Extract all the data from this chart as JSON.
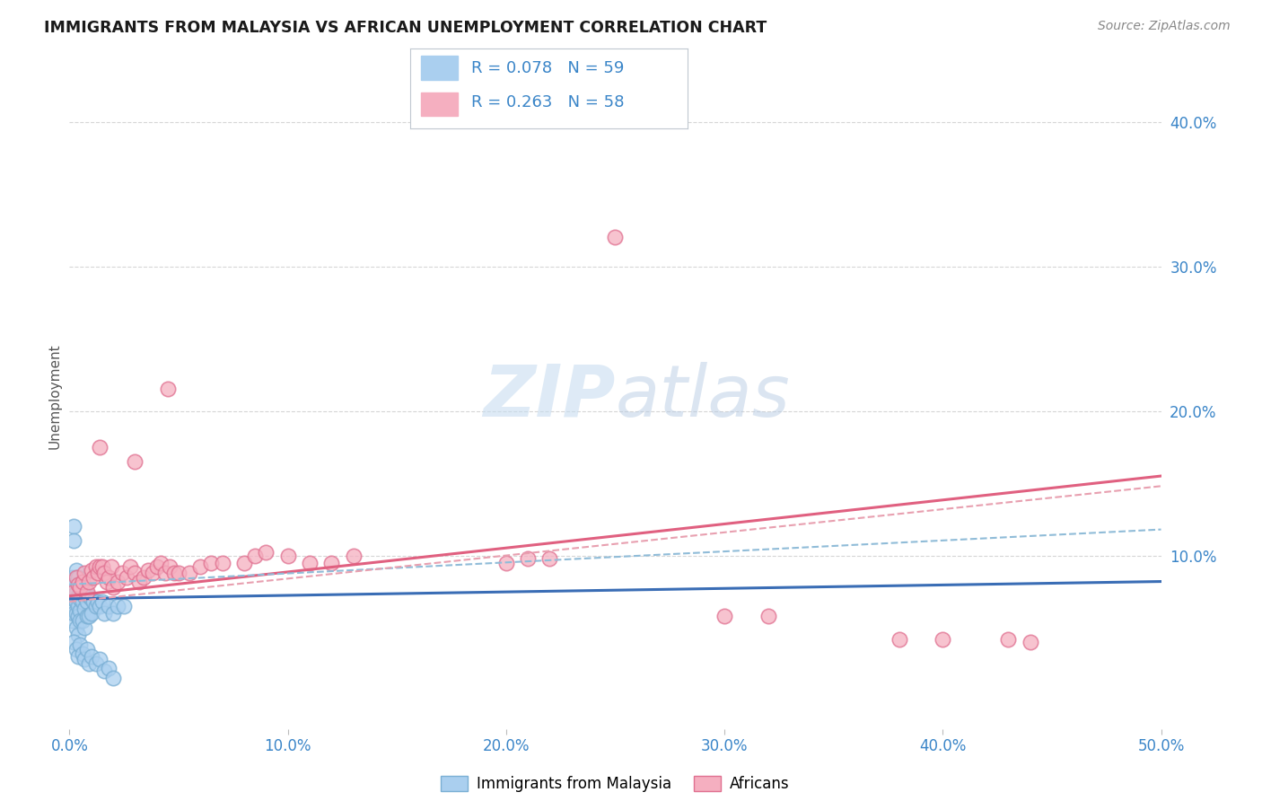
{
  "title": "IMMIGRANTS FROM MALAYSIA VS AFRICAN UNEMPLOYMENT CORRELATION CHART",
  "source": "Source: ZipAtlas.com",
  "ylabel": "Unemployment",
  "xlim": [
    0.0,
    0.5
  ],
  "ylim": [
    -0.02,
    0.44
  ],
  "xticks": [
    0.0,
    0.1,
    0.2,
    0.3,
    0.4,
    0.5
  ],
  "xtick_labels": [
    "0.0%",
    "10.0%",
    "20.0%",
    "30.0%",
    "40.0%",
    "50.0%"
  ],
  "ytick_vals": [
    0.1,
    0.2,
    0.3,
    0.4
  ],
  "ytick_labels": [
    "10.0%",
    "20.0%",
    "30.0%",
    "40.0%"
  ],
  "background_color": "#ffffff",
  "grid_color": "#cccccc",
  "scatter_blue_fill": "#aacfef",
  "scatter_blue_edge": "#7aafd4",
  "scatter_pink_fill": "#f5afc0",
  "scatter_pink_edge": "#e07090",
  "line_blue_color": "#3a6db5",
  "line_pink_color": "#e06080",
  "dashed_blue_color": "#90bcd8",
  "dashed_pink_color": "#e8a0b0",
  "title_color": "#1a1a1a",
  "source_color": "#888888",
  "axis_color": "#3a85c8",
  "watermark_color": "#c8ddf0",
  "R1": 0.078,
  "N1": 59,
  "R2": 0.263,
  "N2": 58,
  "legend_color1": "#aacfef",
  "legend_color2": "#f5afc0",
  "blue_trend": [
    0.07,
    0.082
  ],
  "pink_trend": [
    0.072,
    0.155
  ],
  "blue_dash": [
    0.08,
    0.118
  ],
  "pink_dash": [
    0.068,
    0.148
  ],
  "series1_x": [
    0.001,
    0.001,
    0.001,
    0.001,
    0.002,
    0.002,
    0.002,
    0.002,
    0.002,
    0.003,
    0.003,
    0.003,
    0.003,
    0.003,
    0.004,
    0.004,
    0.004,
    0.004,
    0.004,
    0.005,
    0.005,
    0.005,
    0.005,
    0.006,
    0.006,
    0.006,
    0.007,
    0.007,
    0.007,
    0.008,
    0.008,
    0.009,
    0.009,
    0.01,
    0.01,
    0.011,
    0.012,
    0.013,
    0.014,
    0.015,
    0.016,
    0.018,
    0.02,
    0.022,
    0.025,
    0.002,
    0.003,
    0.004,
    0.005,
    0.006,
    0.007,
    0.008,
    0.009,
    0.01,
    0.012,
    0.014,
    0.016,
    0.018,
    0.02
  ],
  "series1_y": [
    0.085,
    0.075,
    0.065,
    0.055,
    0.12,
    0.11,
    0.08,
    0.07,
    0.06,
    0.09,
    0.075,
    0.068,
    0.06,
    0.05,
    0.085,
    0.072,
    0.065,
    0.058,
    0.045,
    0.08,
    0.07,
    0.062,
    0.055,
    0.075,
    0.068,
    0.055,
    0.072,
    0.063,
    0.05,
    0.068,
    0.058,
    0.072,
    0.058,
    0.07,
    0.06,
    0.068,
    0.065,
    0.068,
    0.065,
    0.068,
    0.06,
    0.065,
    0.06,
    0.065,
    0.065,
    0.04,
    0.035,
    0.03,
    0.038,
    0.032,
    0.028,
    0.035,
    0.025,
    0.03,
    0.025,
    0.028,
    0.02,
    0.022,
    0.015
  ],
  "series2_x": [
    0.002,
    0.003,
    0.004,
    0.005,
    0.006,
    0.007,
    0.008,
    0.009,
    0.01,
    0.011,
    0.012,
    0.013,
    0.014,
    0.015,
    0.016,
    0.017,
    0.018,
    0.019,
    0.02,
    0.022,
    0.024,
    0.026,
    0.028,
    0.03,
    0.032,
    0.034,
    0.036,
    0.038,
    0.04,
    0.042,
    0.044,
    0.046,
    0.048,
    0.05,
    0.055,
    0.06,
    0.065,
    0.07,
    0.08,
    0.085,
    0.09,
    0.1,
    0.11,
    0.12,
    0.13,
    0.2,
    0.21,
    0.22,
    0.3,
    0.32,
    0.38,
    0.4,
    0.43,
    0.44,
    0.014,
    0.03,
    0.045,
    0.25
  ],
  "series2_y": [
    0.075,
    0.085,
    0.08,
    0.078,
    0.082,
    0.088,
    0.075,
    0.082,
    0.09,
    0.085,
    0.092,
    0.088,
    0.092,
    0.092,
    0.088,
    0.082,
    0.085,
    0.092,
    0.078,
    0.082,
    0.088,
    0.085,
    0.092,
    0.088,
    0.082,
    0.085,
    0.09,
    0.088,
    0.092,
    0.095,
    0.088,
    0.092,
    0.088,
    0.088,
    0.088,
    0.092,
    0.095,
    0.095,
    0.095,
    0.1,
    0.102,
    0.1,
    0.095,
    0.095,
    0.1,
    0.095,
    0.098,
    0.098,
    0.058,
    0.058,
    0.042,
    0.042,
    0.042,
    0.04,
    0.175,
    0.165,
    0.215,
    0.32
  ]
}
